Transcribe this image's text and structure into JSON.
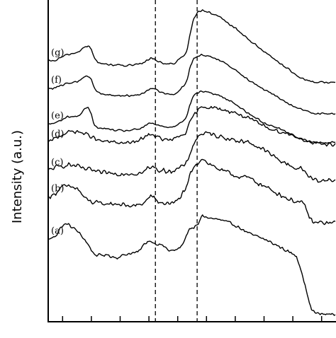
{
  "chart_data": {
    "type": "line",
    "title": "",
    "xlabel": "",
    "ylabel": "Intensity (a.u.)",
    "xlim": [
      0,
      400
    ],
    "ylim": [
      0,
      100
    ],
    "grid": false,
    "reference_lines_x": [
      149,
      207
    ],
    "series": [
      {
        "name": "(a)",
        "x": [
          0,
          6,
          12,
          18,
          26,
          40,
          52,
          62,
          66,
          72,
          80,
          95,
          110,
          125,
          133,
          138,
          143,
          148,
          153,
          160,
          168,
          176,
          182,
          188,
          193,
          197,
          202,
          208,
          214,
          222,
          240,
          260,
          280,
          300,
          320,
          335,
          345,
          352,
          358,
          363,
          367,
          372,
          378,
          390,
          400
        ],
        "y": [
          25.6,
          26.1,
          27.2,
          29.5,
          30.5,
          28.3,
          25.2,
          21.6,
          20.7,
          20.6,
          20.8,
          19.9,
          21.1,
          21.6,
          23.9,
          25.0,
          25.1,
          24.4,
          24.1,
          23.6,
          22.1,
          22.1,
          22.8,
          24.4,
          27.5,
          29.1,
          29.1,
          30.0,
          33.1,
          32.3,
          31.6,
          30.0,
          27.3,
          25.7,
          23.5,
          21.6,
          20.4,
          15.9,
          10.4,
          5.7,
          3.6,
          2.6,
          2.4,
          2.3,
          2.4
        ],
        "noise": 0.55
      },
      {
        "name": "(b)",
        "x": [
          0,
          6,
          12,
          18,
          26,
          40,
          52,
          62,
          66,
          72,
          80,
          95,
          110,
          125,
          133,
          138,
          143,
          148,
          153,
          160,
          168,
          176,
          182,
          188,
          193,
          197,
          202,
          208,
          214,
          222,
          240,
          260,
          280,
          300,
          320,
          335,
          345,
          352,
          358,
          363,
          367,
          372,
          378,
          390,
          400
        ],
        "y": [
          38.8,
          39.2,
          40.4,
          41.9,
          42.0,
          41.5,
          38.1,
          37.1,
          37.0,
          36.7,
          36.6,
          36.7,
          36.0,
          36.1,
          37.0,
          38.0,
          39.3,
          38.1,
          37.3,
          36.7,
          37.0,
          36.9,
          38.3,
          40.3,
          41.5,
          45.8,
          47.7,
          49.2,
          51.1,
          49.3,
          47.1,
          45.4,
          44.6,
          42.1,
          39.8,
          38.0,
          37.4,
          37.0,
          35.5,
          32.5,
          31.0,
          30.7,
          30.8,
          30.7,
          30.7
        ],
        "noise": 0.85
      },
      {
        "name": "(c)",
        "x": [
          0,
          6,
          12,
          18,
          26,
          40,
          52,
          62,
          66,
          72,
          80,
          95,
          110,
          125,
          133,
          138,
          143,
          148,
          153,
          160,
          168,
          176,
          182,
          188,
          193,
          197,
          202,
          208,
          214,
          222,
          240,
          260,
          280,
          300,
          320,
          335,
          345,
          352,
          358,
          363,
          367,
          372,
          378,
          390,
          400
        ],
        "y": [
          46.9,
          47.7,
          48.0,
          48.2,
          48.9,
          48.3,
          47.4,
          47.1,
          46.6,
          46.2,
          46.3,
          46.0,
          46.1,
          46.1,
          46.5,
          47.7,
          47.8,
          48.1,
          47.1,
          46.9,
          46.9,
          47.1,
          47.7,
          48.4,
          49.4,
          52.4,
          55.1,
          57.5,
          58.6,
          58.4,
          57.6,
          56.4,
          55.7,
          53.4,
          50.4,
          48.7,
          47.7,
          47.5,
          46.6,
          44.9,
          44.3,
          44.1,
          43.9,
          44.0,
          43.7
        ],
        "noise": 0.85
      },
      {
        "name": "(d)",
        "x": [
          0,
          6,
          12,
          18,
          26,
          40,
          52,
          62,
          66,
          72,
          80,
          95,
          110,
          125,
          133,
          138,
          143,
          148,
          153,
          160,
          168,
          176,
          182,
          188,
          193,
          197,
          202,
          208,
          214,
          222,
          240,
          260,
          280,
          300,
          320,
          335,
          345,
          352,
          358,
          363,
          367,
          372,
          378,
          390,
          400
        ],
        "y": [
          55.7,
          56.5,
          57.2,
          58.0,
          58.9,
          59.2,
          58.3,
          57.4,
          56.6,
          56.2,
          56.0,
          55.7,
          55.5,
          56.1,
          57.3,
          57.9,
          58.5,
          57.8,
          57.3,
          56.6,
          56.4,
          56.8,
          57.6,
          58.2,
          59.2,
          61.9,
          64.1,
          65.5,
          67.0,
          66.8,
          66.0,
          65.0,
          63.0,
          60.8,
          59.2,
          58.3,
          57.5,
          56.7,
          56.4,
          55.8,
          55.4,
          55.3,
          55.2,
          55.2,
          55.2
        ],
        "noise": 0.7
      },
      {
        "name": "(e)",
        "x": [
          0,
          6,
          12,
          18,
          26,
          40,
          46,
          52,
          56,
          60,
          64,
          68,
          72,
          80,
          95,
          110,
          125,
          133,
          138,
          143,
          148,
          153,
          160,
          168,
          176,
          182,
          188,
          193,
          197,
          202,
          208,
          214,
          222,
          240,
          260,
          280,
          300,
          320,
          335,
          345,
          352,
          358,
          363,
          367,
          372,
          378,
          390,
          400
        ],
        "y": [
          61.4,
          61.6,
          62.0,
          62.6,
          63.7,
          63.8,
          64.7,
          66.4,
          66.5,
          64.7,
          61.2,
          60.3,
          60.1,
          60.0,
          59.4,
          59.4,
          59.8,
          60.6,
          61.3,
          61.7,
          61.4,
          61.0,
          60.6,
          60.5,
          60.7,
          61.8,
          62.6,
          64.0,
          67.5,
          70.3,
          71.2,
          71.6,
          71.4,
          70.1,
          67.7,
          64.5,
          61.8,
          60.2,
          58.6,
          57.5,
          56.8,
          56.3,
          56.0,
          55.9,
          55.8,
          55.7,
          55.7,
          55.7
        ],
        "noise": 0.35
      },
      {
        "name": "(f)",
        "x": [
          0,
          6,
          12,
          18,
          26,
          40,
          46,
          52,
          56,
          60,
          64,
          68,
          72,
          80,
          95,
          110,
          125,
          133,
          138,
          143,
          148,
          153,
          160,
          168,
          176,
          182,
          188,
          193,
          197,
          202,
          208,
          214,
          222,
          240,
          260,
          280,
          300,
          320,
          335,
          345,
          352,
          358,
          363,
          367,
          372,
          378,
          390,
          400
        ],
        "y": [
          72.5,
          72.5,
          72.9,
          73.3,
          74.1,
          74.6,
          75.4,
          76.4,
          76.4,
          75.4,
          72.7,
          71.5,
          71.0,
          70.6,
          70.3,
          70.2,
          70.5,
          71.1,
          72.1,
          72.7,
          72.3,
          71.6,
          71.1,
          70.9,
          70.6,
          72.0,
          73.2,
          75.1,
          78.9,
          81.7,
          82.5,
          83.0,
          82.7,
          81.2,
          78.3,
          75.0,
          72.2,
          69.6,
          67.7,
          66.4,
          66.0,
          65.5,
          65.2,
          65.0,
          64.8,
          64.7,
          64.7,
          64.6
        ],
        "noise": 0.35
      },
      {
        "name": "(g)",
        "x": [
          0,
          6,
          12,
          18,
          26,
          40,
          46,
          52,
          56,
          60,
          64,
          68,
          72,
          80,
          95,
          110,
          125,
          133,
          138,
          143,
          148,
          153,
          160,
          168,
          176,
          182,
          188,
          193,
          197,
          202,
          208,
          214,
          222,
          240,
          260,
          280,
          300,
          320,
          335,
          345,
          352,
          358,
          363,
          367,
          372,
          378,
          390,
          400
        ],
        "y": [
          81.0,
          81.0,
          81.4,
          82.2,
          82.9,
          83.7,
          84.6,
          85.5,
          85.7,
          84.6,
          81.9,
          80.8,
          80.4,
          80.0,
          79.8,
          79.6,
          79.9,
          80.5,
          81.3,
          82.1,
          81.6,
          80.9,
          80.4,
          80.0,
          80.4,
          81.6,
          82.7,
          84.2,
          89.4,
          94.1,
          96.3,
          96.7,
          96.3,
          94.4,
          91.2,
          87.5,
          84.0,
          80.8,
          78.3,
          76.5,
          75.6,
          75.1,
          74.8,
          74.6,
          74.5,
          74.5,
          74.4,
          74.4
        ],
        "noise": 0.35
      }
    ]
  }
}
